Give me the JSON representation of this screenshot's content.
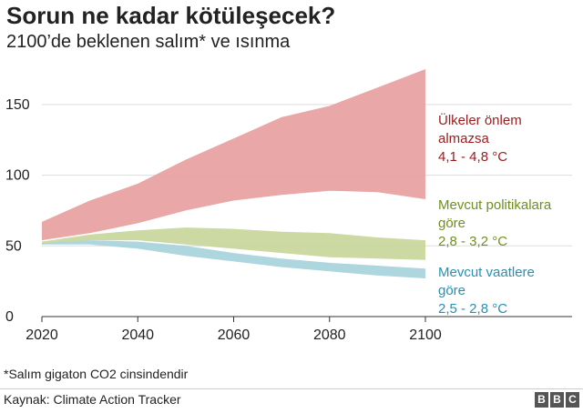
{
  "title": "Sorun ne kadar kötüleşecek?",
  "subtitle": "2100’de beklenen salım* ve ısınma",
  "footnote": "*Salım gigaton CO2 cinsindendir",
  "source": "Kaynak: Climate Action Tracker",
  "logo": [
    "B",
    "B",
    "C"
  ],
  "colors": {
    "grid": "#dddddd",
    "axis": "#333333"
  },
  "chart_data": {
    "type": "area",
    "xlabel": "",
    "ylabel": "",
    "xlim": [
      2020,
      2100
    ],
    "ylim": [
      0,
      175
    ],
    "x_ticks": [
      2020,
      2040,
      2060,
      2080,
      2100
    ],
    "y_ticks": [
      0,
      50,
      100,
      150
    ],
    "grid": true,
    "series": [
      {
        "id": "no_action",
        "label": "Ülkeler önlem almazsa",
        "range": "4,1 - 4,8 °C",
        "color": "#e8a09f",
        "text_color": "#9b1b1e",
        "x": [
          2020,
          2030,
          2040,
          2050,
          2060,
          2070,
          2080,
          2090,
          2100
        ],
        "upper": [
          67,
          82,
          94,
          111,
          126,
          141,
          149,
          162,
          175
        ],
        "lower": [
          54,
          59,
          66,
          75,
          82,
          86,
          89,
          88,
          83
        ]
      },
      {
        "id": "current_policies",
        "label": "Mevcut politikalara göre",
        "range": "2,8 - 3,2 °C",
        "color": "#c8d69a",
        "text_color": "#6f8f1e",
        "x": [
          2020,
          2030,
          2040,
          2050,
          2060,
          2070,
          2080,
          2090,
          2100
        ],
        "upper": [
          53,
          58,
          61,
          63,
          62,
          60,
          59,
          56,
          54
        ],
        "lower": [
          51,
          54,
          54,
          51,
          48,
          45,
          42,
          41,
          40
        ]
      },
      {
        "id": "pledges",
        "label": "Mevcut vaatlere göre",
        "range": "2,5 - 2,8 °C",
        "color": "#a7d2dc",
        "text_color": "#2a8fb3",
        "x": [
          2020,
          2030,
          2040,
          2050,
          2060,
          2070,
          2080,
          2090,
          2100
        ],
        "upper": [
          52,
          54,
          53,
          50,
          45,
          41,
          38,
          36,
          34
        ],
        "lower": [
          51,
          51,
          48,
          43,
          39,
          35,
          32,
          29,
          27
        ]
      }
    ]
  }
}
